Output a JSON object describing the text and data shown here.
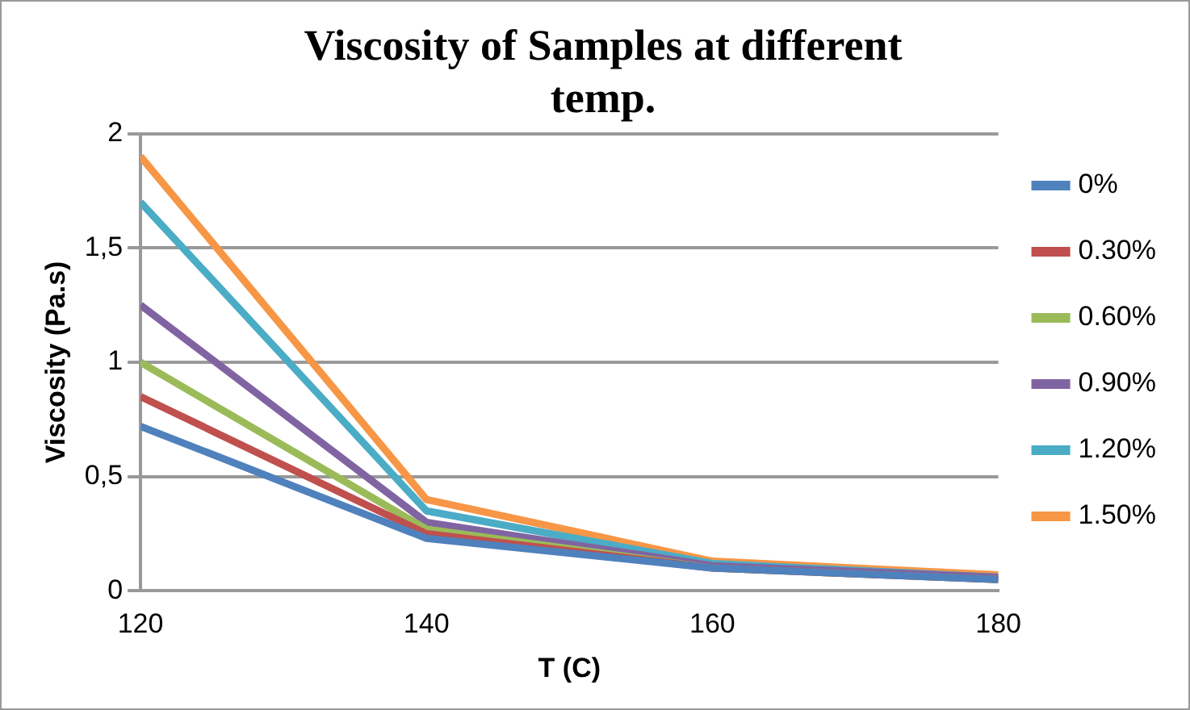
{
  "chart_data": {
    "type": "line",
    "title": "Viscosity of Samples at different temp.",
    "xlabel": "T (C)",
    "ylabel": "Viscosity (Pa.s)",
    "x": [
      120,
      140,
      160,
      180
    ],
    "xlim": [
      120,
      180
    ],
    "xticks": [
      120,
      140,
      160,
      180
    ],
    "ylim": [
      0,
      2
    ],
    "yticks": [
      {
        "value": 0,
        "label": "0"
      },
      {
        "value": 0.5,
        "label": "0,5"
      },
      {
        "value": 1,
        "label": "1"
      },
      {
        "value": 1.5,
        "label": "1,5"
      },
      {
        "value": 2,
        "label": "2"
      }
    ],
    "grid": "y",
    "legend": "right",
    "marker": "none",
    "line_style": "solid",
    "series": [
      {
        "name": "0%",
        "color": "#4f81bd",
        "values": [
          0.72,
          0.23,
          0.1,
          0.05
        ]
      },
      {
        "name": "0.30%",
        "color": "#c0504d",
        "values": [
          0.85,
          0.25,
          0.1,
          0.05
        ]
      },
      {
        "name": "0.60%",
        "color": "#9bbb59",
        "values": [
          1.0,
          0.27,
          0.1,
          0.05
        ]
      },
      {
        "name": "0.90%",
        "color": "#8064a2",
        "values": [
          1.25,
          0.3,
          0.11,
          0.06
        ]
      },
      {
        "name": "1.20%",
        "color": "#4bacc6",
        "values": [
          1.7,
          0.35,
          0.12,
          0.06
        ]
      },
      {
        "name": "1.50%",
        "color": "#f79646",
        "values": [
          1.9,
          0.4,
          0.13,
          0.07
        ]
      }
    ]
  }
}
